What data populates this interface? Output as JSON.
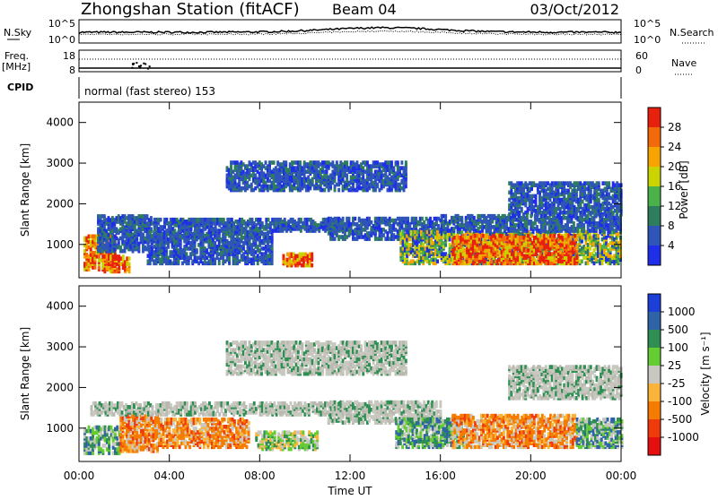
{
  "header": {
    "station": "Zhongshan Station (fitACF)",
    "beam": "Beam 04",
    "date": "03/Oct/2012"
  },
  "side_labels": {
    "nsky": "N.Sky",
    "freq_line1": "Freq.",
    "freq_line2": "[MHz]",
    "cpid": "CPID",
    "nsearch": "N.Search",
    "nave": "Nave"
  },
  "cpid_text": "normal (fast stereo) 153",
  "panels": {
    "noise": {
      "left_ticks": [
        "10^5",
        "10^0"
      ],
      "right_ticks": [
        "10^5",
        "10^0"
      ]
    },
    "freq": {
      "left_ticks": [
        "18",
        "8"
      ],
      "right_ticks": [
        "60",
        "0"
      ]
    }
  },
  "chart_data": [
    {
      "type": "heatmap",
      "title": "",
      "xlabel": "Time UT",
      "ylabel": "Slant Range [km]",
      "x_ticks": [
        "00:00",
        "04:00",
        "08:00",
        "12:00",
        "16:00",
        "20:00",
        "00:00"
      ],
      "y_ticks": [
        1000,
        2000,
        3000,
        4000
      ],
      "xlim": [
        0,
        24
      ],
      "ylim": [
        180,
        4500
      ],
      "colorbar": {
        "label": "Power [dB]",
        "ticks": [
          "4",
          "8",
          "12",
          "16",
          "20",
          "24",
          "28"
        ],
        "colors": [
          "#1f2ee8",
          "#2f55b8",
          "#2e7d5e",
          "#4bb24b",
          "#c9d400",
          "#f7a400",
          "#f26a0a",
          "#e8200e"
        ]
      },
      "regions": [
        {
          "t": [
            0.2,
            1.6
          ],
          "r": [
            350,
            1200
          ],
          "level": "strong"
        },
        {
          "t": [
            0.8,
            3.2
          ],
          "r": [
            800,
            1700
          ],
          "level": "weak"
        },
        {
          "t": [
            1.0,
            2.2
          ],
          "r": [
            300,
            700
          ],
          "level": "strong"
        },
        {
          "t": [
            3.0,
            8.5
          ],
          "r": [
            500,
            1300
          ],
          "level": "weak"
        },
        {
          "t": [
            3.2,
            11.5
          ],
          "r": [
            1300,
            1600
          ],
          "level": "weak"
        },
        {
          "t": [
            9.0,
            10.3
          ],
          "r": [
            450,
            750
          ],
          "level": "strong"
        },
        {
          "t": [
            11.0,
            16.0
          ],
          "r": [
            1100,
            1600
          ],
          "level": "weak"
        },
        {
          "t": [
            6.5,
            14.5
          ],
          "r": [
            2300,
            3000
          ],
          "level": "weak"
        },
        {
          "t": [
            14.2,
            24.0
          ],
          "r": [
            500,
            1300
          ],
          "level": "medium"
        },
        {
          "t": [
            16.5,
            22.0
          ],
          "r": [
            500,
            1200
          ],
          "level": "strong"
        },
        {
          "t": [
            19.0,
            24.0
          ],
          "r": [
            1700,
            2500
          ],
          "level": "weak"
        },
        {
          "t": [
            16.0,
            24.0
          ],
          "r": [
            1300,
            1700
          ],
          "level": "weak"
        }
      ]
    },
    {
      "type": "heatmap",
      "title": "",
      "xlabel": "Time UT",
      "ylabel": "Slant Range [km]",
      "x_ticks": [
        "00:00",
        "04:00",
        "08:00",
        "12:00",
        "16:00",
        "20:00",
        "00:00"
      ],
      "y_ticks": [
        1000,
        2000,
        3000,
        4000
      ],
      "xlim": [
        0,
        24
      ],
      "ylim": [
        180,
        4500
      ],
      "colorbar": {
        "label": "Velocity [m s⁻¹]",
        "ticks": [
          "1000",
          "500",
          "100",
          "25",
          "-25",
          "-100",
          "-500",
          "-1000"
        ],
        "colors": [
          "#1c3fd8",
          "#2e63a8",
          "#2f8f53",
          "#66cc33",
          "#c8c8c0",
          "#fbb43a",
          "#f57c00",
          "#ef3a0c",
          "#e50f0f"
        ]
      },
      "regions": [
        {
          "t": [
            0.2,
            1.8
          ],
          "r": [
            350,
            1000
          ],
          "level": "pos"
        },
        {
          "t": [
            1.8,
            3.5
          ],
          "r": [
            400,
            1300
          ],
          "level": "neg"
        },
        {
          "t": [
            3.5,
            7.5
          ],
          "r": [
            500,
            1200
          ],
          "level": "neg"
        },
        {
          "t": [
            0.5,
            11.5
          ],
          "r": [
            1300,
            1600
          ],
          "level": "zero"
        },
        {
          "t": [
            7.8,
            10.5
          ],
          "r": [
            450,
            900
          ],
          "level": "mixed"
        },
        {
          "t": [
            6.5,
            14.5
          ],
          "r": [
            2300,
            3100
          ],
          "level": "zero"
        },
        {
          "t": [
            11.0,
            16.0
          ],
          "r": [
            1100,
            1600
          ],
          "level": "zero"
        },
        {
          "t": [
            14.0,
            17.0
          ],
          "r": [
            500,
            1200
          ],
          "level": "pos"
        },
        {
          "t": [
            16.5,
            22.0
          ],
          "r": [
            500,
            1300
          ],
          "level": "neg"
        },
        {
          "t": [
            19.0,
            24.0
          ],
          "r": [
            1700,
            2500
          ],
          "level": "zero"
        },
        {
          "t": [
            22.0,
            24.0
          ],
          "r": [
            500,
            1200
          ],
          "level": "pos"
        }
      ]
    }
  ],
  "xlabel": "Time UT"
}
